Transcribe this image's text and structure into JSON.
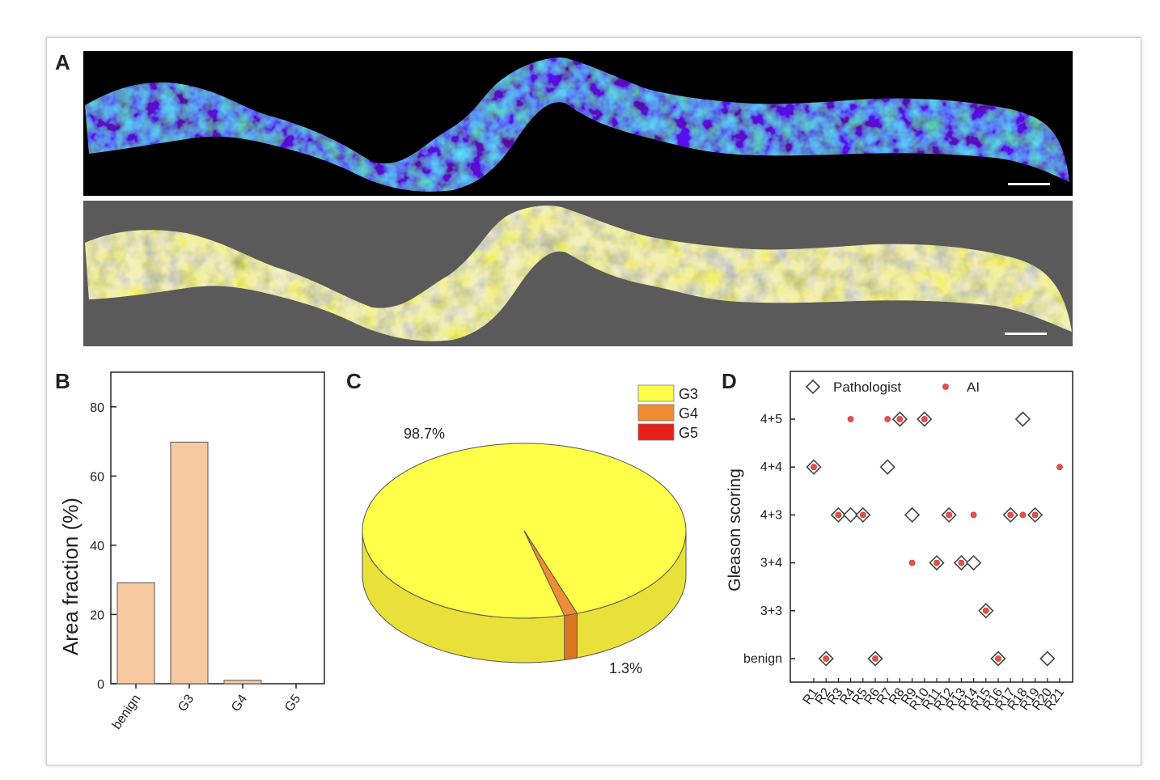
{
  "panels": {
    "a": "A",
    "b": "B",
    "c": "C",
    "d": "D"
  },
  "colors": {
    "bar_fill": "#f6c9a0",
    "bar_stroke": "#555555",
    "g3": "#ffff4a",
    "g4": "#f08c32",
    "g5": "#e8201a",
    "ai_dot": "#e4514c",
    "diamond": "#444444"
  },
  "chart_data": [
    {
      "id": "B",
      "type": "bar",
      "title": "",
      "xlabel": "",
      "ylabel": "Area fraction (%)",
      "categories": [
        "benign",
        "G3",
        "G4",
        "G5"
      ],
      "values": [
        29.2,
        69.8,
        1.0,
        0.0
      ],
      "ylim": [
        0,
        90
      ],
      "yticks": [
        0,
        20,
        40,
        60,
        80
      ],
      "grid": false,
      "legend": "none"
    },
    {
      "id": "C",
      "type": "pie",
      "title": "",
      "style": "3d",
      "slices": [
        {
          "label": "G3",
          "value": 98.7,
          "text": "98.7%"
        },
        {
          "label": "G4",
          "value": 1.3,
          "text": "1.3%"
        },
        {
          "label": "G5",
          "value": 0.0,
          "text": ""
        }
      ],
      "legend": "top-right"
    },
    {
      "id": "D",
      "type": "scatter",
      "title": "",
      "xlabel": "",
      "ylabel": "Gleason scoring",
      "categories": [
        "R1",
        "R2",
        "R3",
        "R4",
        "R5",
        "R6",
        "R7",
        "R8",
        "R9",
        "R10",
        "R11",
        "R12",
        "R13",
        "R14",
        "R15",
        "R16",
        "R17",
        "R18",
        "R19",
        "R20",
        "R21"
      ],
      "levels": [
        "benign",
        "3+3",
        "3+4",
        "4+3",
        "4+4",
        "4+5"
      ],
      "series": [
        {
          "name": "Pathologist",
          "marker": "diamond",
          "values": [
            "4+4",
            "benign",
            "4+3",
            "4+3",
            "4+3",
            "benign",
            "4+4",
            "4+5",
            "4+3",
            "4+5",
            "3+4",
            "4+3",
            "3+4",
            "3+4",
            "3+3",
            "benign",
            "4+3",
            "4+5",
            "4+3",
            "benign",
            null
          ]
        },
        {
          "name": "AI",
          "marker": "dot",
          "values": [
            "4+4",
            "benign",
            "4+3",
            "4+5",
            "4+3",
            "benign",
            "4+5",
            "4+5",
            "3+4",
            "4+5",
            "3+4",
            "4+3",
            "3+4",
            "4+3",
            "3+3",
            "benign",
            "4+3",
            "4+3",
            "4+3",
            null,
            "4+4"
          ]
        }
      ],
      "legend": "top"
    }
  ]
}
